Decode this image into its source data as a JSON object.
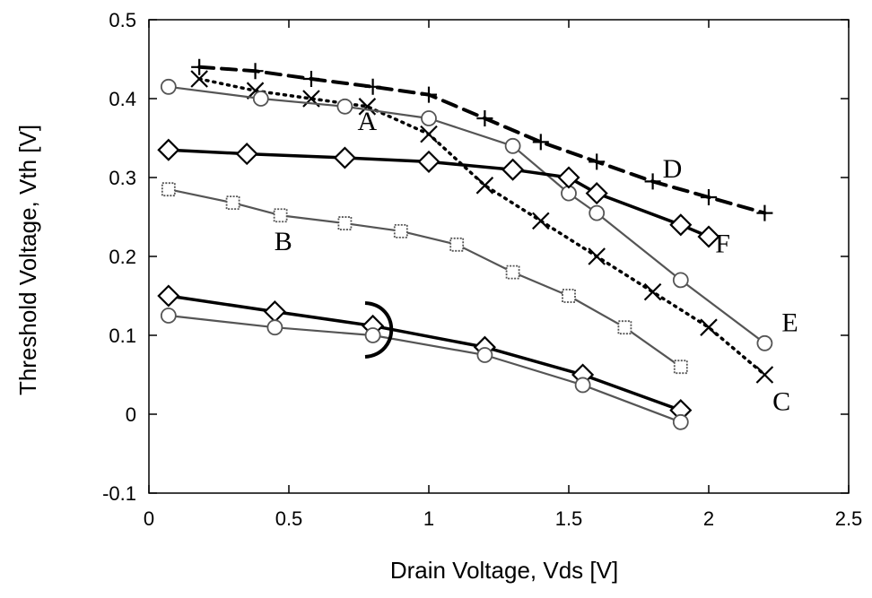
{
  "chart_data": {
    "type": "line",
    "title": "",
    "xlabel": "Drain Voltage,  Vds [V]",
    "ylabel": "Threshold Voltage, Vth [V]",
    "xlim": [
      0,
      2.5
    ],
    "ylim": [
      -0.1,
      0.5
    ],
    "x_ticks": [
      {
        "value": 0,
        "label": "0"
      },
      {
        "value": 0.5,
        "label": "0.5"
      },
      {
        "value": 1,
        "label": "1"
      },
      {
        "value": 1.5,
        "label": "1.5"
      },
      {
        "value": 2,
        "label": "2"
      },
      {
        "value": 2.5,
        "label": "2.5"
      }
    ],
    "y_ticks": [
      {
        "value": -0.1,
        "label": "-0.1"
      },
      {
        "value": 0,
        "label": "0"
      },
      {
        "value": 0.1,
        "label": "0.1"
      },
      {
        "value": 0.2,
        "label": "0.2"
      },
      {
        "value": 0.3,
        "label": "0.3"
      },
      {
        "value": 0.4,
        "label": "0.4"
      },
      {
        "value": 0.5,
        "label": "0.5"
      }
    ],
    "grid": false,
    "legend": "none",
    "series": [
      {
        "label": "D",
        "marker": "plus",
        "line": "dashed",
        "color": "#000000",
        "weight": "heavy",
        "x": [
          0.18,
          0.38,
          0.58,
          0.8,
          1.0,
          1.2,
          1.4,
          1.6,
          1.8,
          2.0,
          2.2
        ],
        "y": [
          0.44,
          0.435,
          0.425,
          0.415,
          0.405,
          0.375,
          0.345,
          0.32,
          0.295,
          0.275,
          0.255
        ]
      },
      {
        "label": "C",
        "marker": "x",
        "line": "dotted",
        "color": "#000000",
        "weight": "heavy",
        "x": [
          0.18,
          0.38,
          0.58,
          0.78,
          1.0,
          1.2,
          1.4,
          1.6,
          1.8,
          2.0,
          2.2
        ],
        "y": [
          0.425,
          0.41,
          0.4,
          0.39,
          0.355,
          0.29,
          0.245,
          0.2,
          0.155,
          0.11,
          0.05
        ]
      },
      {
        "label": "E",
        "marker": "circle",
        "line": "solid",
        "color": "#000000",
        "weight": "light",
        "x": [
          0.07,
          0.4,
          0.7,
          1.0,
          1.3,
          1.5,
          1.6,
          1.9,
          2.2
        ],
        "y": [
          0.415,
          0.4,
          0.39,
          0.375,
          0.34,
          0.28,
          0.255,
          0.17,
          0.09
        ]
      },
      {
        "label": "F",
        "marker": "diamond",
        "line": "solid",
        "color": "#000000",
        "weight": "heavy",
        "x": [
          0.07,
          0.35,
          0.7,
          1.0,
          1.3,
          1.5,
          1.6,
          1.9,
          2.0
        ],
        "y": [
          0.335,
          0.33,
          0.325,
          0.32,
          0.31,
          0.3,
          0.28,
          0.24,
          0.225
        ]
      },
      {
        "label": "B",
        "marker": "square",
        "line": "solid",
        "color": "#000000",
        "weight": "light",
        "x": [
          0.07,
          0.3,
          0.47,
          0.7,
          0.9,
          1.1,
          1.3,
          1.5,
          1.7,
          1.9
        ],
        "y": [
          0.285,
          0.268,
          0.252,
          0.242,
          0.232,
          0.215,
          0.18,
          0.15,
          0.11,
          0.06
        ]
      },
      {
        "label": "",
        "marker": "diamond",
        "line": "solid",
        "color": "#000000",
        "weight": "heavy",
        "x": [
          0.07,
          0.45,
          0.8,
          1.2,
          1.55,
          1.9
        ],
        "y": [
          0.15,
          0.13,
          0.112,
          0.085,
          0.05,
          0.005
        ]
      },
      {
        "label": "",
        "marker": "circle",
        "line": "solid",
        "color": "#000000",
        "weight": "light",
        "x": [
          0.07,
          0.45,
          0.8,
          1.2,
          1.55,
          1.9
        ],
        "y": [
          0.125,
          0.11,
          0.1,
          0.075,
          0.037,
          -0.01
        ]
      }
    ],
    "annotations": [
      {
        "text": "D",
        "x": 1.87,
        "y": 0.3
      },
      {
        "text": "F",
        "x": 2.05,
        "y": 0.205
      },
      {
        "text": "E",
        "x": 2.29,
        "y": 0.105
      },
      {
        "text": "C",
        "x": 2.26,
        "y": 0.005
      },
      {
        "text": "B",
        "x": 0.48,
        "y": 0.208
      },
      {
        "text": "A",
        "x": 0.78,
        "y": 0.36
      }
    ]
  }
}
